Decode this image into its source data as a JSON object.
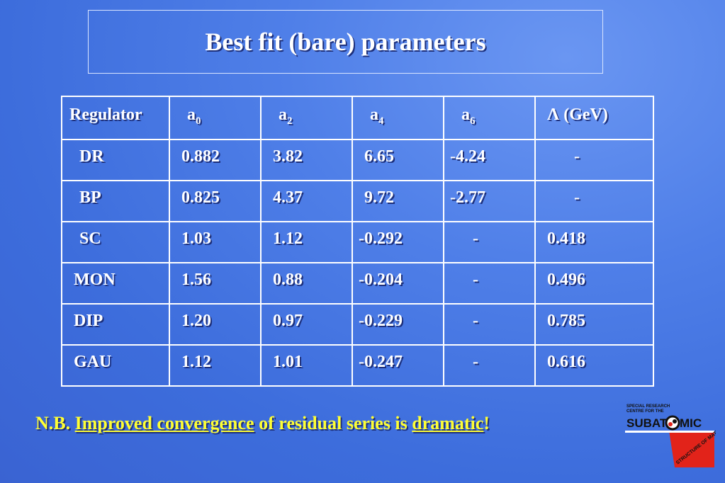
{
  "title": "Best fit (bare) parameters",
  "table": {
    "headers": [
      {
        "base": "Regulator",
        "sub": ""
      },
      {
        "base": "a",
        "sub": "0"
      },
      {
        "base": "a",
        "sub": "2"
      },
      {
        "base": "a",
        "sub": "4"
      },
      {
        "base": "a",
        "sub": "6"
      },
      {
        "base": "Λ (GeV)",
        "sub": ""
      }
    ],
    "rows": [
      [
        "DR",
        "0.882",
        "3.82",
        "6.65",
        "-4.24",
        "-"
      ],
      [
        "BP",
        "0.825",
        "4.37",
        "9.72",
        "-2.77",
        "-"
      ],
      [
        "SC",
        "1.03",
        "1.12",
        "-0.292",
        "-",
        "0.418"
      ],
      [
        "MON",
        "1.56",
        "0.88",
        "-0.204",
        "-",
        "0.496"
      ],
      [
        "DIP",
        "1.20",
        "0.97",
        "-0.229",
        "-",
        "0.785"
      ],
      [
        "GAU",
        "1.12",
        "1.01",
        "-0.247",
        "-",
        "0.616"
      ]
    ]
  },
  "note": {
    "prefix": "N.B. ",
    "link1": "Improved convergence",
    "middle": " of residual series is ",
    "link2": "dramatic",
    "suffix": "!"
  },
  "logo": {
    "line1": "SPECIAL RESEARCH",
    "line2": "CENTRE FOR THE",
    "word_left": "SUBAT",
    "word_right": "MIC",
    "curve_text": "STRUCTURE OF MATTER"
  },
  "colors": {
    "background": "#4f7fe8",
    "note_text": "#ffff33",
    "logo_red": "#e2231a"
  }
}
